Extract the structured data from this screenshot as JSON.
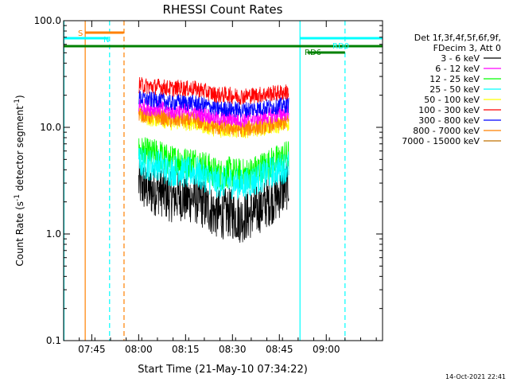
{
  "chart_data": {
    "type": "line",
    "title": "RHESSI Count Rates",
    "xlabel": "Start Time (21-May-10 07:34:22)",
    "ylabel_main": "Count Rate (s",
    "ylabel_sup1": "-1",
    "ylabel_mid": " detector segment",
    "ylabel_sup2": "-1",
    "ylabel_end": ")",
    "ylog": true,
    "xlim_min": [
      7.6,
      9.3
    ],
    "ylim": [
      0.1,
      100
    ],
    "xticks": [
      {
        "min": 7.75,
        "label": "07:45"
      },
      {
        "min": 8.0,
        "label": "08:00"
      },
      {
        "min": 8.25,
        "label": "08:15"
      },
      {
        "min": 8.5,
        "label": "08:30"
      },
      {
        "min": 8.75,
        "label": "08:45"
      },
      {
        "min": 9.0,
        "label": "09:00"
      }
    ],
    "yticks": [
      {
        "value": 0.1,
        "label": "0.1"
      },
      {
        "value": 1,
        "label": "1.0"
      },
      {
        "value": 10,
        "label": "10.0"
      },
      {
        "value": 100,
        "label": "100.0"
      }
    ],
    "legend_header": [
      "Det 1f,3f,4f,5f,6f,9f,",
      "FDecim 3, Att 0"
    ],
    "legend_position": "right",
    "series": [
      {
        "name": "3 - 6 keV",
        "color": "#000000",
        "values": [
          3.0,
          2.7,
          2.5,
          2.6,
          2.3,
          2.2,
          2.3,
          2.1,
          2.2,
          2.0,
          1.8,
          1.6,
          1.5,
          1.6,
          1.5,
          1.4,
          1.5,
          1.6,
          1.8,
          2.0,
          2.2,
          2.5,
          3.0
        ]
      },
      {
        "name": "6 - 12 keV",
        "color": "#ff00ff",
        "values": [
          16,
          15.5,
          15,
          15.2,
          14.5,
          14,
          14.5,
          14,
          14.2,
          13.5,
          13,
          12.5,
          12,
          12.2,
          12,
          11.8,
          12,
          12.3,
          12.5,
          12.8,
          13,
          13.5,
          14
        ]
      },
      {
        "name": "12 - 25 keV",
        "color": "#00ff00",
        "values": [
          6.0,
          5.7,
          5.5,
          5.6,
          5.0,
          4.8,
          5.0,
          4.6,
          4.8,
          4.5,
          4.2,
          3.8,
          3.6,
          3.8,
          3.7,
          3.6,
          3.7,
          3.9,
          4.2,
          4.5,
          4.8,
          5.1,
          5.5
        ]
      },
      {
        "name": "25 - 50 keV",
        "color": "#00ffff",
        "values": [
          4.8,
          4.5,
          4.4,
          4.5,
          4.0,
          3.9,
          4.0,
          3.7,
          3.9,
          3.6,
          3.4,
          3.1,
          3.0,
          3.1,
          3.0,
          2.9,
          3.0,
          3.2,
          3.4,
          3.7,
          3.9,
          4.1,
          4.4
        ]
      },
      {
        "name": "50 - 100 keV",
        "color": "#ffff00",
        "values": [
          13,
          12.5,
          12,
          12.2,
          11.5,
          11,
          11.4,
          11,
          11.2,
          10.6,
          10.2,
          9.8,
          9.5,
          9.6,
          9.5,
          9.3,
          9.5,
          9.7,
          9.9,
          10.1,
          10.3,
          10.6,
          11
        ]
      },
      {
        "name": "100 - 300 keV",
        "color": "#ff0000",
        "values": [
          25,
          24.5,
          24,
          24.2,
          23.5,
          23,
          23.5,
          23,
          23.2,
          22.5,
          21.5,
          20.5,
          20,
          20.2,
          19.8,
          19.5,
          19.8,
          20,
          20.3,
          20.6,
          20.9,
          21.2,
          21.5
        ]
      },
      {
        "name": "300 - 800 keV",
        "color": "#0000ff",
        "values": [
          19,
          18.5,
          18,
          18.2,
          17.5,
          17,
          17.4,
          17,
          17.1,
          16.5,
          16,
          15.2,
          14.8,
          15,
          14.7,
          14.5,
          14.7,
          15,
          15.2,
          15.5,
          15.7,
          16,
          16.3
        ]
      },
      {
        "name": "800 - 7000 keV",
        "color": "#ff8000",
        "values": [
          13.5,
          13,
          12.6,
          12.8,
          12,
          11.6,
          12,
          11.5,
          11.8,
          11.2,
          10.7,
          10.2,
          9.9,
          10,
          9.8,
          9.6,
          9.8,
          10,
          10.2,
          10.5,
          10.7,
          11,
          11.3
        ]
      },
      {
        "name": "7000 - 15000 keV",
        "color": "#c07000",
        "values": []
      }
    ],
    "series_time_min": [
      8.0,
      8.8
    ],
    "annotations": [
      {
        "label": "S",
        "color": "#ff8000"
      },
      {
        "label": "N",
        "color": "#00ffff"
      },
      {
        "label": "RD0",
        "color": "#00ffff"
      },
      {
        "label": "RD6",
        "color": "#008000"
      }
    ],
    "timestamp": "14-Oct-2021 22:41"
  }
}
